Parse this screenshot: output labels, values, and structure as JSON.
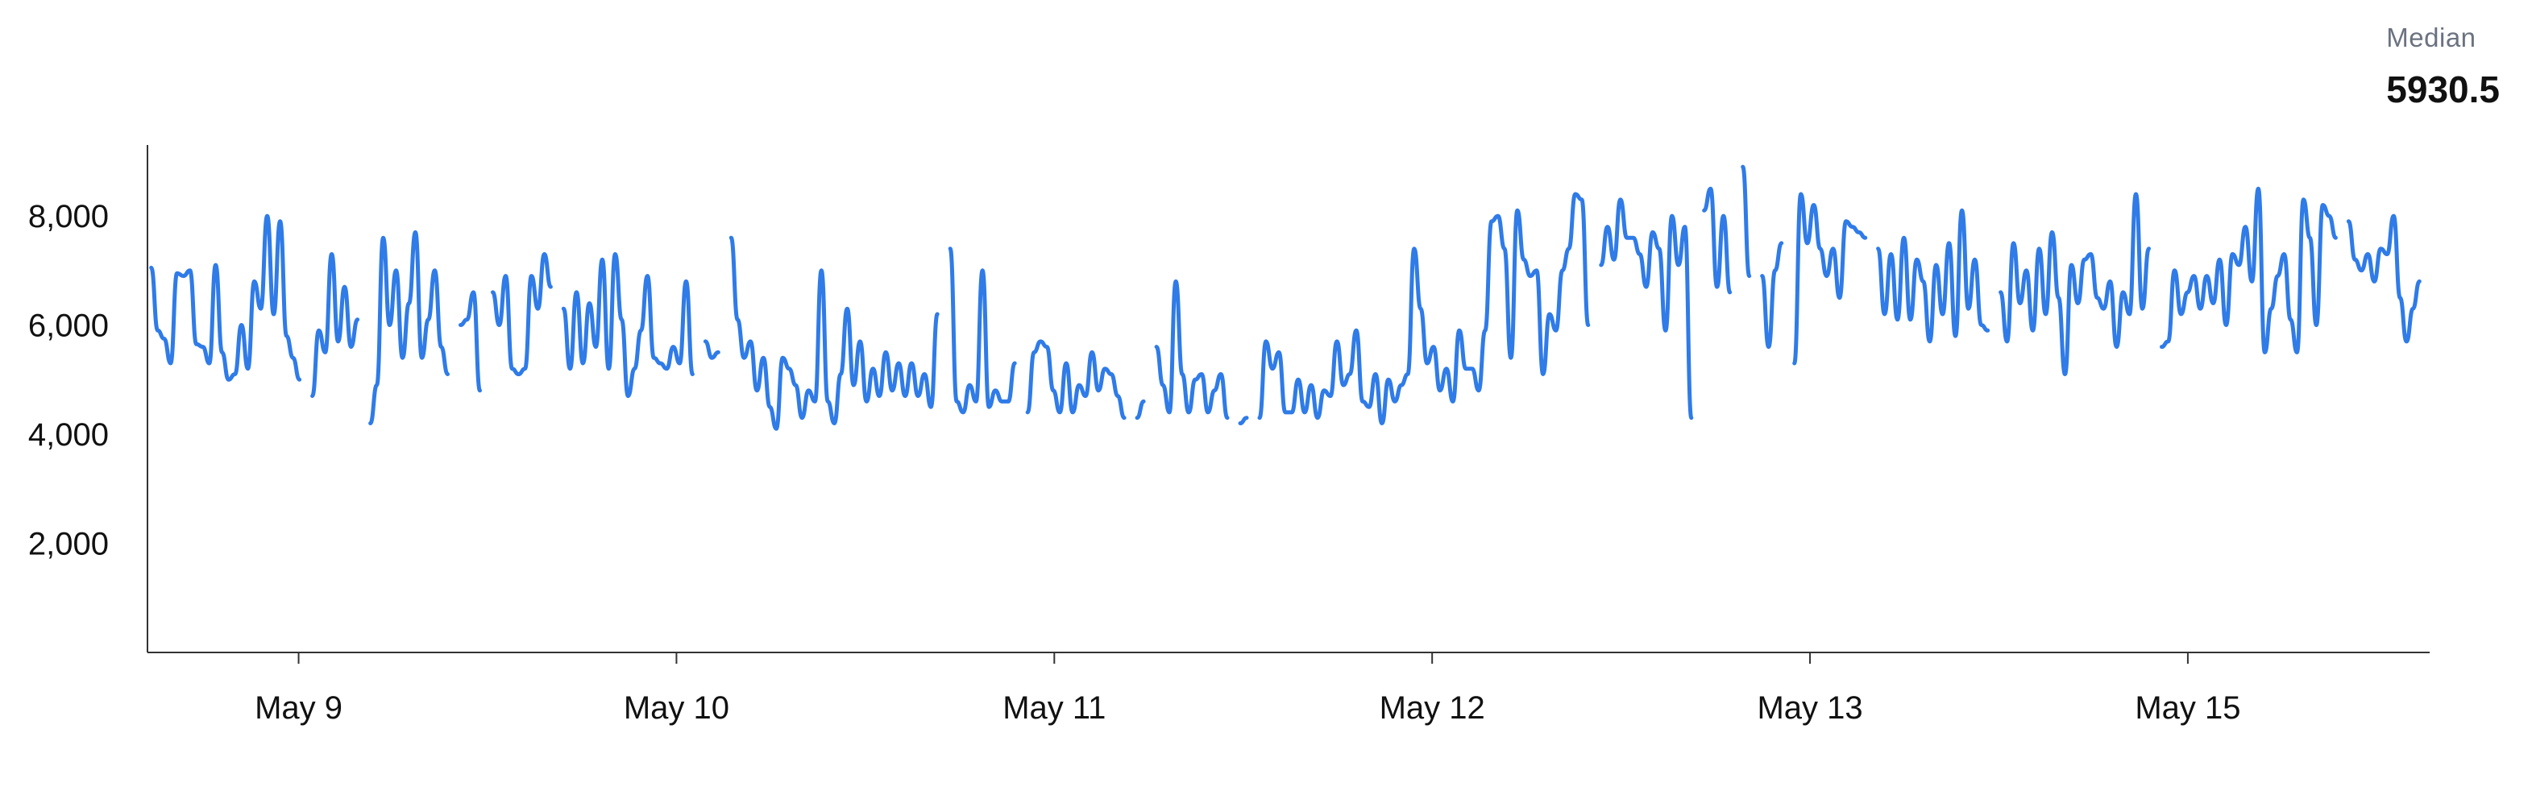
{
  "summary": {
    "label": "Median",
    "value": "5930.5"
  },
  "chart_data": {
    "type": "line",
    "title": "",
    "xlabel": "",
    "ylabel": "",
    "ylim": [
      0,
      9300
    ],
    "y_ticks": [
      2000,
      4000,
      6000,
      8000
    ],
    "y_tick_labels": [
      "2,000",
      "4,000",
      "6,000",
      "8,000"
    ],
    "x_ticks": [
      {
        "pos": 1,
        "label": "May 9"
      },
      {
        "pos": 2,
        "label": "May 10"
      },
      {
        "pos": 3,
        "label": "May 11"
      },
      {
        "pos": 4,
        "label": "May 12"
      },
      {
        "pos": 5,
        "label": "May 13"
      },
      {
        "pos": 6,
        "label": "May 15"
      }
    ],
    "xlim": [
      0.6,
      6.64
    ],
    "grid": false,
    "line_color": "#2f7be8",
    "series": [
      {
        "values": [
          7050,
          5900,
          5750,
          5300,
          6950,
          6900,
          7000,
          5650,
          5600,
          5300,
          7100,
          5500,
          5000,
          5100,
          6000,
          5200,
          6800,
          6300,
          8000,
          6200,
          7900,
          5800,
          5400,
          5000
        ]
      },
      {
        "values": [
          4700,
          5900,
          5500,
          7300,
          5700,
          6700,
          5600,
          6100
        ]
      },
      {
        "values": [
          4200,
          4900,
          7600,
          6000,
          7000,
          5400,
          6400,
          7700,
          5400,
          6100,
          7000,
          5600,
          5100
        ]
      },
      {
        "values": [
          6000,
          6100,
          6600,
          4800
        ]
      },
      {
        "values": [
          6600,
          6000,
          6900,
          5200,
          5100,
          5200,
          6900,
          6300,
          7300,
          6700
        ]
      },
      {
        "values": [
          6300,
          5200,
          6600,
          5300,
          6400,
          5600,
          7200,
          5200,
          7300,
          6100,
          4700,
          5200,
          5900,
          6900,
          5400,
          5300,
          5200,
          5600,
          5300,
          6800,
          5100
        ]
      },
      {
        "values": [
          5700,
          5400,
          5500
        ]
      },
      {
        "values": [
          7600,
          6100,
          5400,
          5700,
          4800,
          5400,
          4500,
          4100,
          5400,
          5200,
          4900,
          4300,
          4800,
          4600,
          7000,
          4600,
          4200,
          5100,
          6300,
          4900,
          5700,
          4600,
          5200,
          4700,
          5500,
          4800,
          5300,
          4700,
          5300,
          4700,
          5100,
          4500,
          6200
        ]
      },
      {
        "values": [
          7400,
          4600,
          4400,
          4900,
          4600,
          7000,
          4500,
          4800,
          4600,
          4600,
          5300
        ]
      },
      {
        "values": [
          4400,
          5500,
          5700,
          5600,
          4800,
          4400,
          5300,
          4400,
          4900,
          4700,
          5500,
          4800,
          5200,
          5100,
          4700,
          4300
        ]
      },
      {
        "values": [
          4300,
          4600
        ]
      },
      {
        "values": [
          5600,
          4900,
          4400,
          6800,
          5100,
          4400,
          5000,
          5100,
          4400,
          4800,
          5100,
          4300
        ]
      },
      {
        "values": [
          4200,
          4300
        ]
      },
      {
        "values": [
          4300,
          5700,
          5200,
          5500,
          4400,
          4400,
          5000,
          4400,
          4900,
          4300,
          4800,
          4700,
          5700,
          4900,
          5100,
          5900,
          4600,
          4500,
          5100,
          4200,
          5000,
          4600,
          4900,
          5100,
          7400,
          6300,
          5300,
          5600,
          4800,
          5200,
          4600,
          5900,
          5200,
          5200,
          4800,
          5900,
          7900,
          8000,
          7400,
          5400,
          8100,
          7200,
          6900,
          7000,
          5100,
          6200,
          5900,
          7000,
          7400,
          8400,
          8300,
          6000
        ]
      },
      {
        "values": [
          7100,
          7800,
          7200,
          8300,
          7600,
          7600,
          7300,
          6700,
          7700,
          7400,
          5900,
          8000,
          7100,
          7800,
          4300
        ]
      },
      {
        "values": [
          8100,
          8500,
          6700,
          8000,
          6600
        ]
      },
      {
        "values": [
          8900,
          6900
        ]
      },
      {
        "values": [
          6900,
          5600,
          7000,
          7500
        ]
      },
      {
        "values": [
          5300,
          8400,
          7500,
          8200,
          7400,
          6900,
          7400,
          6500,
          7900,
          7800,
          7700,
          7600
        ]
      },
      {
        "values": [
          7400,
          6200,
          7300,
          6100,
          7600,
          6100,
          7200,
          6800,
          5700,
          7100,
          6200,
          7500,
          5800,
          8100,
          6300,
          7200,
          6000,
          5900
        ]
      },
      {
        "values": [
          6600,
          5700,
          7500,
          6400,
          7000,
          5900,
          7400,
          6200,
          7700,
          6500,
          5100,
          7100,
          6400,
          7200,
          7300,
          6500,
          6300,
          6800,
          5600,
          6600,
          6200,
          8400,
          6300,
          7400
        ]
      },
      {
        "values": [
          5600,
          5700,
          7000,
          6200,
          6600,
          6900,
          6300,
          6900,
          6400,
          7200,
          6000,
          7300,
          7100,
          7800,
          6800,
          8500,
          5500,
          6300,
          6900,
          7300,
          6100,
          5500,
          8300,
          7600,
          6000,
          8200,
          8000,
          7600
        ]
      },
      {
        "values": [
          7900,
          7200,
          7000,
          7300,
          6800,
          7400,
          7300,
          8000,
          6500,
          5700,
          6300,
          6800
        ]
      }
    ]
  }
}
